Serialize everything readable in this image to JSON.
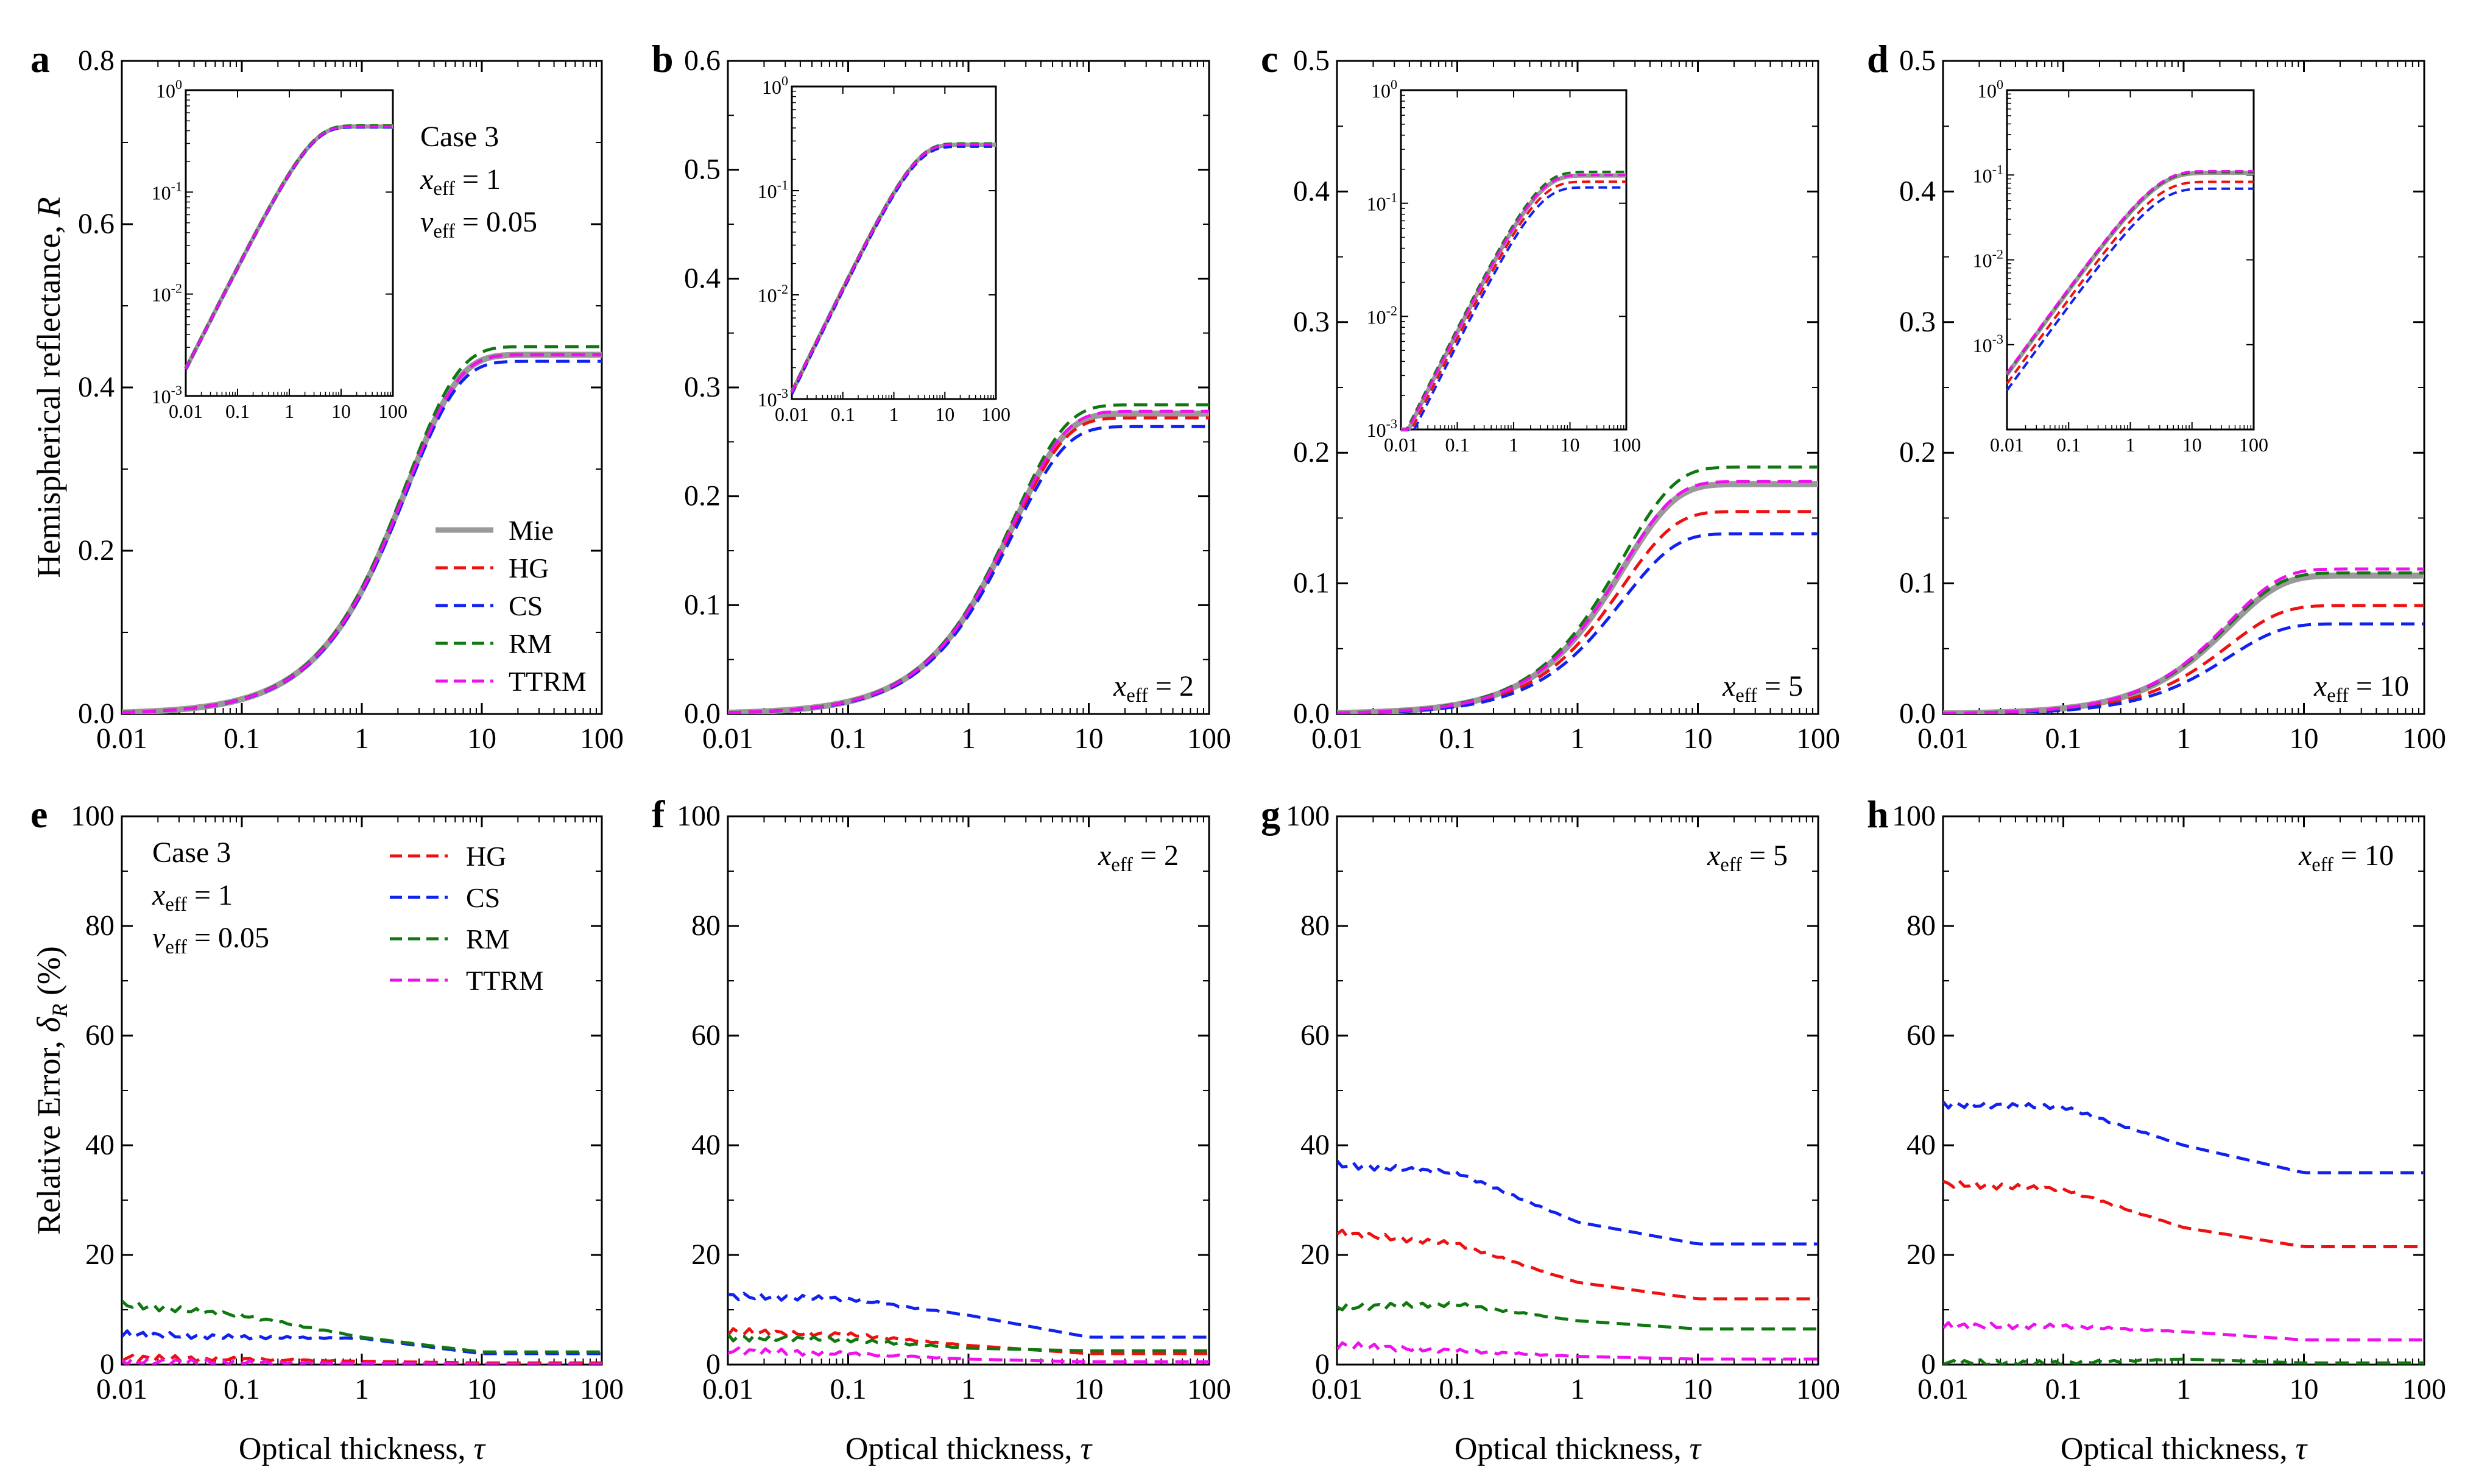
{
  "figure": {
    "x_axis_label_text": "Optical thickness, ",
    "x_axis_label_symbol": "τ",
    "row1_ylabel_text": "Hemispherical reflectance, ",
    "row1_ylabel_symbol": "R",
    "row2_ylabel_text": "Relative Error, ",
    "row2_ylabel_symbol": "δ",
    "row2_ylabel_sub": "R",
    "row2_ylabel_unit": " (%)",
    "case_label": "Case 3",
    "x_eff_label": "x",
    "x_eff_sub": "eff",
    "v_eff_label": "v",
    "v_eff_sub": "eff",
    "v_eff_value": "0.05"
  },
  "series_styles": [
    {
      "name": "Mie",
      "color": "#999999",
      "dash": "solid"
    },
    {
      "name": "HG",
      "color": "#ee1111",
      "dash": "dashed"
    },
    {
      "name": "CS",
      "color": "#1122ee",
      "dash": "dashed"
    },
    {
      "name": "RM",
      "color": "#117711",
      "dash": "dashed"
    },
    {
      "name": "TTRM",
      "color": "#ee11ee",
      "dash": "dashed"
    }
  ],
  "chart_data": [
    {
      "panel": "a",
      "type": "line",
      "xscale": "log",
      "xlim": [
        0.01,
        100
      ],
      "ylim": [
        0,
        0.8
      ],
      "xticks": [
        "0.01",
        "0.1",
        "1",
        "10",
        "100"
      ],
      "yticks": [
        "0.0",
        "0.2",
        "0.4",
        "0.6",
        "0.8"
      ],
      "xlabel": "Optical thickness, τ",
      "ylabel": "Hemispherical reflectance, R",
      "annotation": {
        "case": "Case 3",
        "x_eff": "1",
        "v_eff": "0.05"
      },
      "legend": [
        "Mie",
        "HG",
        "CS",
        "RM",
        "TTRM"
      ],
      "series": [
        {
          "name": "Mie",
          "saturation": 0.44
        },
        {
          "name": "HG",
          "saturation": 0.44
        },
        {
          "name": "CS",
          "saturation": 0.432
        },
        {
          "name": "RM",
          "saturation": 0.45
        },
        {
          "name": "TTRM",
          "saturation": 0.44
        }
      ],
      "inset": {
        "xticks": [
          "0.01",
          "0.1",
          "1",
          "10",
          "100"
        ],
        "ylim_exp": [
          -3,
          0
        ],
        "yticks_exp": [
          -3,
          -2,
          -1,
          0
        ]
      }
    },
    {
      "panel": "b",
      "type": "line",
      "xscale": "log",
      "xlim": [
        0.01,
        100
      ],
      "ylim": [
        0,
        0.6
      ],
      "xticks": [
        "0.01",
        "0.1",
        "1",
        "10",
        "100"
      ],
      "yticks": [
        "0.0",
        "0.1",
        "0.2",
        "0.3",
        "0.4",
        "0.5",
        "0.6"
      ],
      "annotation": {
        "x_eff": "2"
      },
      "series": [
        {
          "name": "Mie",
          "saturation": 0.276
        },
        {
          "name": "HG",
          "saturation": 0.272
        },
        {
          "name": "CS",
          "saturation": 0.264
        },
        {
          "name": "RM",
          "saturation": 0.284
        },
        {
          "name": "TTRM",
          "saturation": 0.278
        }
      ],
      "inset": {
        "xticks": [
          "0.01",
          "0.1",
          "1",
          "10",
          "100"
        ],
        "ylim_exp": [
          -3,
          0
        ],
        "yticks_exp": [
          -3,
          -2,
          -1,
          0
        ]
      }
    },
    {
      "panel": "c",
      "type": "line",
      "xscale": "log",
      "xlim": [
        0.01,
        100
      ],
      "ylim": [
        0,
        0.5
      ],
      "xticks": [
        "0.01",
        "0.1",
        "1",
        "10",
        "100"
      ],
      "yticks": [
        "0.0",
        "0.1",
        "0.2",
        "0.3",
        "0.4",
        "0.5"
      ],
      "annotation": {
        "x_eff": "5"
      },
      "series": [
        {
          "name": "Mie",
          "saturation": 0.176
        },
        {
          "name": "HG",
          "saturation": 0.155
        },
        {
          "name": "CS",
          "saturation": 0.138
        },
        {
          "name": "RM",
          "saturation": 0.189
        },
        {
          "name": "TTRM",
          "saturation": 0.178
        }
      ],
      "inset": {
        "xticks": [
          "0.01",
          "0.1",
          "1",
          "10",
          "100"
        ],
        "ylim_exp": [
          -3,
          0
        ],
        "yticks_exp": [
          -3,
          -2,
          -1,
          0
        ]
      }
    },
    {
      "panel": "d",
      "type": "line",
      "xscale": "log",
      "xlim": [
        0.01,
        100
      ],
      "ylim": [
        0,
        0.5
      ],
      "xticks": [
        "0.01",
        "0.1",
        "1",
        "10",
        "100"
      ],
      "yticks": [
        "0.0",
        "0.1",
        "0.2",
        "0.3",
        "0.4",
        "0.5"
      ],
      "annotation": {
        "x_eff": "10"
      },
      "series": [
        {
          "name": "Mie",
          "saturation": 0.106
        },
        {
          "name": "HG",
          "saturation": 0.083
        },
        {
          "name": "CS",
          "saturation": 0.069
        },
        {
          "name": "RM",
          "saturation": 0.108
        },
        {
          "name": "TTRM",
          "saturation": 0.111
        }
      ],
      "inset": {
        "xticks": [
          "0.01",
          "0.1",
          "1",
          "10",
          "100"
        ],
        "ylim_exp": [
          -4,
          0
        ],
        "yticks_exp": [
          -3,
          -2,
          -1,
          0
        ]
      }
    },
    {
      "panel": "e",
      "type": "line",
      "xscale": "log",
      "xlim": [
        0.01,
        100
      ],
      "ylim": [
        0,
        100
      ],
      "xticks": [
        "0.01",
        "0.1",
        "1",
        "10",
        "100"
      ],
      "yticks": [
        "0",
        "20",
        "40",
        "60",
        "80",
        "100"
      ],
      "xlabel": "Optical thickness, τ",
      "ylabel": "Relative Error, δR (%)",
      "annotation": {
        "case": "Case 3",
        "x_eff": "1",
        "v_eff": "0.05"
      },
      "legend": [
        "HG",
        "CS",
        "RM",
        "TTRM"
      ],
      "series": [
        {
          "name": "HG",
          "x": [
            0.01,
            0.1,
            1,
            10,
            100
          ],
          "y": [
            1.2,
            1.0,
            0.6,
            0.3,
            0.3
          ]
        },
        {
          "name": "CS",
          "x": [
            0.01,
            0.1,
            1,
            10,
            100
          ],
          "y": [
            5.5,
            5.0,
            4.8,
            2.0,
            2.0
          ]
        },
        {
          "name": "RM",
          "x": [
            0.01,
            0.1,
            1,
            10,
            100
          ],
          "y": [
            11.0,
            9.0,
            5.0,
            2.3,
            2.3
          ]
        },
        {
          "name": "TTRM",
          "x": [
            0.01,
            0.1,
            1,
            10,
            100
          ],
          "y": [
            0.6,
            0.4,
            0.2,
            0.1,
            0.1
          ]
        }
      ]
    },
    {
      "panel": "f",
      "type": "line",
      "xscale": "log",
      "xlim": [
        0.01,
        100
      ],
      "ylim": [
        0,
        100
      ],
      "xticks": [
        "0.01",
        "0.1",
        "1",
        "10",
        "100"
      ],
      "yticks": [
        "0",
        "20",
        "40",
        "60",
        "80",
        "100"
      ],
      "annotation": {
        "x_eff": "2"
      },
      "series": [
        {
          "name": "HG",
          "x": [
            0.01,
            0.1,
            1,
            10,
            100
          ],
          "y": [
            6.0,
            5.5,
            3.5,
            2.0,
            2.0
          ]
        },
        {
          "name": "CS",
          "x": [
            0.01,
            0.1,
            1,
            10,
            100
          ],
          "y": [
            12.5,
            12.0,
            9.0,
            5.0,
            5.0
          ]
        },
        {
          "name": "RM",
          "x": [
            0.01,
            0.1,
            1,
            10,
            100
          ],
          "y": [
            5.0,
            4.5,
            3.0,
            2.5,
            2.5
          ]
        },
        {
          "name": "TTRM",
          "x": [
            0.01,
            0.1,
            1,
            10,
            100
          ],
          "y": [
            2.5,
            2.0,
            1.0,
            0.5,
            0.5
          ]
        }
      ]
    },
    {
      "panel": "g",
      "type": "line",
      "xscale": "log",
      "xlim": [
        0.01,
        100
      ],
      "ylim": [
        0,
        100
      ],
      "xticks": [
        "0.01",
        "0.1",
        "1",
        "10",
        "100"
      ],
      "yticks": [
        "0",
        "20",
        "40",
        "60",
        "80",
        "100"
      ],
      "annotation": {
        "x_eff": "5"
      },
      "series": [
        {
          "name": "HG",
          "x": [
            0.01,
            0.1,
            1,
            10,
            100
          ],
          "y": [
            24.0,
            22.0,
            15.0,
            12.0,
            12.0
          ]
        },
        {
          "name": "CS",
          "x": [
            0.01,
            0.1,
            1,
            10,
            100
          ],
          "y": [
            36.5,
            35.0,
            26.0,
            22.0,
            22.0
          ]
        },
        {
          "name": "RM",
          "x": [
            0.01,
            0.1,
            1,
            10,
            100
          ],
          "y": [
            10.5,
            11.0,
            8.0,
            6.5,
            6.5
          ]
        },
        {
          "name": "TTRM",
          "x": [
            0.01,
            0.1,
            1,
            10,
            100
          ],
          "y": [
            3.5,
            2.5,
            1.5,
            1.0,
            1.0
          ]
        }
      ]
    },
    {
      "panel": "h",
      "type": "line",
      "xscale": "log",
      "xlim": [
        0.01,
        100
      ],
      "ylim": [
        0,
        100
      ],
      "xticks": [
        "0.01",
        "0.1",
        "1",
        "10",
        "100"
      ],
      "yticks": [
        "0",
        "20",
        "40",
        "60",
        "80",
        "100"
      ],
      "annotation": {
        "x_eff": "10"
      },
      "series": [
        {
          "name": "HG",
          "x": [
            0.01,
            0.1,
            1,
            10,
            100
          ],
          "y": [
            33.0,
            32.0,
            25.0,
            21.5,
            21.5
          ]
        },
        {
          "name": "CS",
          "x": [
            0.01,
            0.1,
            1,
            10,
            100
          ],
          "y": [
            47.5,
            47.0,
            40.0,
            35.0,
            35.0
          ]
        },
        {
          "name": "RM",
          "x": [
            0.01,
            0.1,
            1,
            10,
            100
          ],
          "y": [
            0.3,
            0.3,
            1.0,
            0.3,
            0.3
          ]
        },
        {
          "name": "TTRM",
          "x": [
            0.01,
            0.1,
            1,
            10,
            100
          ],
          "y": [
            7.0,
            7.0,
            6.0,
            4.5,
            4.5
          ]
        }
      ]
    }
  ]
}
